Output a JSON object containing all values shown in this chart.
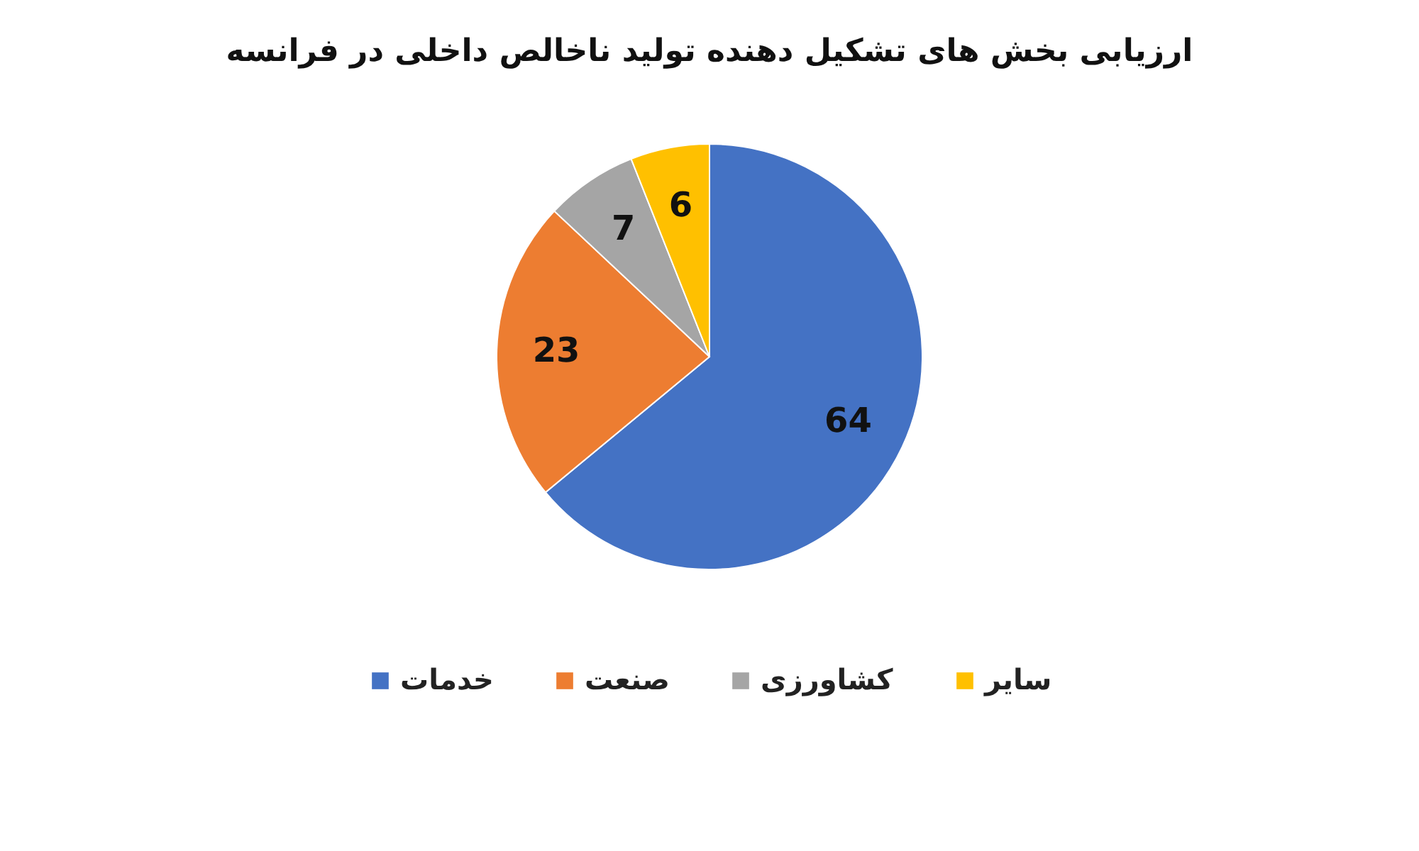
{
  "chart_data": {
    "type": "pie",
    "title": "ارزیابی بخش های تشکیل دهنده تولید ناخالص داخلی در فرانسه",
    "categories": [
      "خدمات",
      "صنعت",
      "کشاورزی",
      "سایر"
    ],
    "values": [
      64,
      23,
      7,
      6
    ],
    "colors": [
      "#4472c4",
      "#ed7d31",
      "#a5a5a5",
      "#ffc000"
    ],
    "data_labels": true,
    "legend": "bottom"
  }
}
